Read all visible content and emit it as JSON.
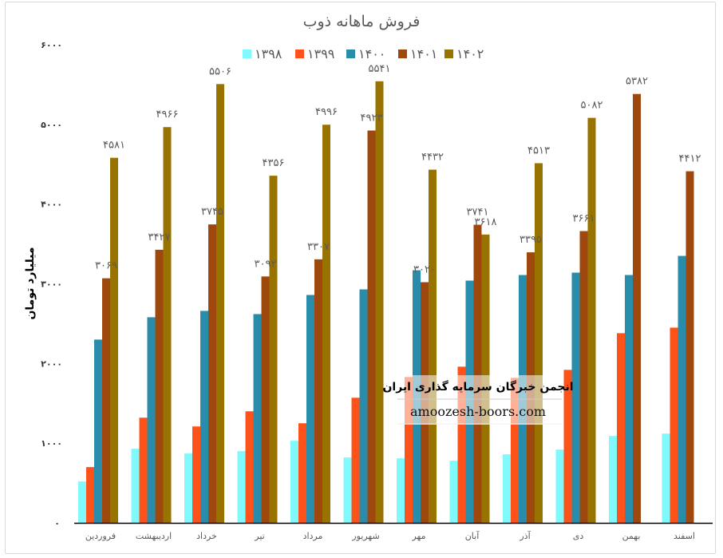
{
  "chart_data": {
    "type": "bar",
    "title": "فروش ماهانه ذوب",
    "ylabel": "میلیارد تومان",
    "xlabel": "",
    "ylim": [
      0,
      6000
    ],
    "yticks": [
      0,
      1000,
      2000,
      3000,
      4000,
      5000,
      6000
    ],
    "grid": false,
    "legend_position": "top",
    "categories": [
      "فروردین",
      "اردیبهشت",
      "خرداد",
      "تیر",
      "مرداد",
      "شهریور",
      "مهر",
      "آبان",
      "آذر",
      "دی",
      "بهمن",
      "اسفند"
    ],
    "series": [
      {
        "name": "1398",
        "color": "#7ff9fc",
        "labels": false,
        "values": [
          520,
          930,
          870,
          900,
          1030,
          820,
          810,
          780,
          860,
          920,
          1090,
          1120
        ]
      },
      {
        "name": "1399",
        "color": "#fd531a",
        "labels": false,
        "values": [
          700,
          1320,
          1210,
          1400,
          1250,
          1570,
          1830,
          1960,
          1820,
          1920,
          2380,
          2450
        ]
      },
      {
        "name": "1400",
        "color": "#2a8cab",
        "labels": false,
        "values": [
          2300,
          2580,
          2660,
          2620,
          2860,
          2930,
          3170,
          3040,
          3110,
          3140,
          3110,
          3350
        ]
      },
      {
        "name": "1401",
        "color": "#9e480e",
        "labels": true,
        "values": [
          3069,
          3427,
          3745,
          3092,
          3307,
          4923,
          3020,
          3741,
          3395,
          3661,
          5382,
          4412
        ]
      },
      {
        "name": "1402",
        "color": "#997300",
        "labels": true,
        "values": [
          4581,
          4966,
          5506,
          4356,
          4996,
          5541,
          4432,
          3618,
          4513,
          5082,
          null,
          null
        ]
      }
    ]
  },
  "watermark": {
    "line1": "انجمن خبرگان سرمایه گذاری ایران",
    "line2": "amoozesh-boors.com"
  }
}
